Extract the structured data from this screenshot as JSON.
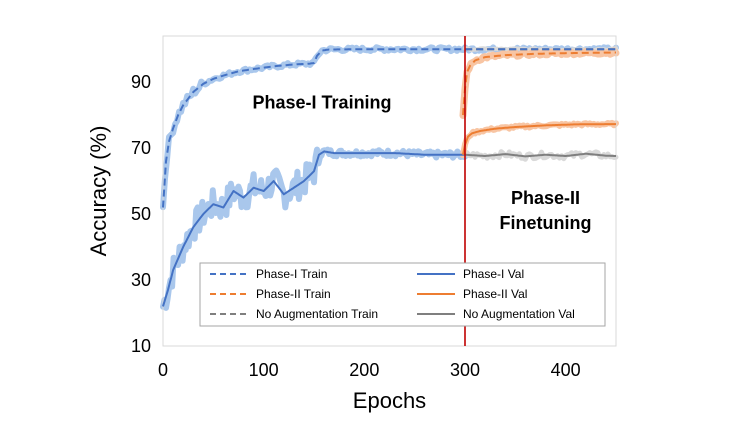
{
  "chart_data": {
    "type": "line",
    "xlabel": "Epochs",
    "ylabel": "Accuracy (%)",
    "xlim": [
      0,
      450
    ],
    "ylim": [
      10,
      104
    ],
    "xticks": [
      0,
      100,
      200,
      300,
      400
    ],
    "yticks": [
      10,
      30,
      50,
      70,
      90
    ],
    "grid": false,
    "legend_placement": "bottom-right",
    "phase_boundary_x": 300,
    "colors": {
      "phase1": "#4472C4",
      "phase1_band": "#A9C7EC",
      "phase2": "#ED7D31",
      "phase2_band": "#F8C5A3",
      "noaug": "#7F7F7F",
      "noaug_band": "#D9D9D9",
      "boundary": "#C00000"
    },
    "annotations": [
      {
        "text": "Phase-I Training",
        "x": 158,
        "y": 82
      },
      {
        "text": "Phase-II",
        "x": 380,
        "y": 53
      },
      {
        "text": "Finetuning",
        "x": 380,
        "y": 45.5
      }
    ],
    "series": [
      {
        "name": "Phase-I Train",
        "style": "dashed",
        "color": "#4472C4",
        "x": [
          0,
          3,
          6,
          10,
          15,
          20,
          30,
          40,
          50,
          60,
          75,
          90,
          110,
          130,
          145,
          150,
          153,
          158,
          165,
          200,
          250,
          300,
          350,
          400,
          450
        ],
        "y": [
          52,
          66,
          72,
          76,
          80,
          83,
          87,
          89.5,
          91,
          92,
          93.3,
          94,
          94.8,
          95.4,
          95.6,
          95.8,
          98,
          99.6,
          99.9,
          100,
          100,
          100,
          100,
          100,
          100
        ]
      },
      {
        "name": "Phase-I Val",
        "style": "solid",
        "color": "#4472C4",
        "x": [
          0,
          5,
          10,
          20,
          30,
          40,
          50,
          60,
          70,
          80,
          90,
          100,
          110,
          120,
          130,
          140,
          150,
          155,
          160,
          170,
          200,
          230,
          260,
          280,
          300
        ],
        "y": [
          22,
          27,
          33,
          40,
          46,
          50,
          53,
          52,
          57,
          55,
          58,
          57,
          60,
          56,
          58,
          60,
          63,
          68,
          69,
          68.5,
          68.5,
          68.5,
          68,
          68,
          68
        ]
      },
      {
        "name": "Phase-II Train",
        "style": "dashed",
        "color": "#ED7D31",
        "x": [
          298,
          300,
          302,
          305,
          310,
          320,
          340,
          370,
          400,
          450
        ],
        "y": [
          80,
          88,
          93,
          95,
          96.6,
          97.6,
          98.2,
          98.6,
          98.8,
          99
        ]
      },
      {
        "name": "Phase-II Val",
        "style": "solid",
        "color": "#ED7D31",
        "x": [
          298,
          300,
          303,
          307,
          315,
          330,
          350,
          380,
          410,
          450
        ],
        "y": [
          68,
          71,
          73.5,
          74.5,
          75.2,
          75.9,
          76.4,
          76.9,
          77.2,
          77.3
        ]
      },
      {
        "name": "No Augmentation Train",
        "style": "dashed",
        "color": "#7F7F7F",
        "x": [
          300,
          350,
          400,
          450
        ],
        "y": [
          100,
          100,
          100,
          100
        ]
      },
      {
        "name": "No Augmentation Val",
        "style": "solid",
        "color": "#7F7F7F",
        "x": [
          300,
          320,
          340,
          360,
          380,
          400,
          420,
          440,
          450
        ],
        "y": [
          68,
          67.6,
          68.2,
          67.5,
          68,
          67.6,
          68.3,
          67.7,
          67.6
        ]
      }
    ]
  }
}
